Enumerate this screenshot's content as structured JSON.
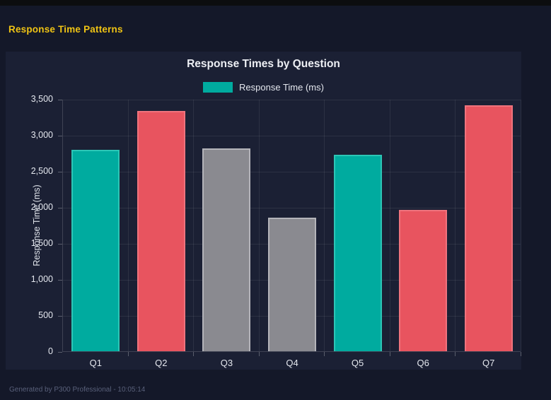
{
  "app": {
    "page_title": "Response Time Patterns",
    "footer": "Generated by P300 Professional - 10:05:14"
  },
  "colors": {
    "page_background": "#141829",
    "panel_background": "#1b2034",
    "top_strip": "#0c0d0f",
    "heading_yellow": "#f0c414",
    "teal": "#00ab9f",
    "red": "#e8545f",
    "gray": "#8a8a90"
  },
  "chart_data": {
    "type": "bar",
    "title": "Response Times by Question",
    "legend": [
      {
        "label": "Response Time (ms)",
        "color": "#00ab9f"
      }
    ],
    "legend_position": "top",
    "categories": [
      "Q1",
      "Q2",
      "Q3",
      "Q4",
      "Q5",
      "Q6",
      "Q7"
    ],
    "series": [
      {
        "name": "Response Time (ms)",
        "values": [
          2790,
          3330,
          2810,
          1850,
          2730,
          1960,
          3410
        ]
      }
    ],
    "bar_colors": [
      "#00ab9f",
      "#e8545f",
      "#8a8a90",
      "#8a8a90",
      "#00ab9f",
      "#e8545f",
      "#e8545f"
    ],
    "bar_border_colors": [
      "#2cc6b6",
      "#ef737d",
      "#b4b4ba",
      "#b4b4ba",
      "#2cc6b6",
      "#ef737d",
      "#ef737d"
    ],
    "xlabel": "",
    "ylabel": "Response Time (ms)",
    "ylim": [
      0,
      3500
    ],
    "ytick_step": 500,
    "grid": true
  }
}
